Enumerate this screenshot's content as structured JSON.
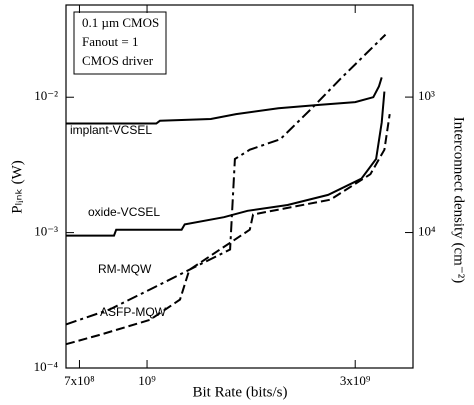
{
  "chart_data": {
    "type": "line",
    "xlabel": "Bit Rate (bits/s)",
    "ylabel": "Pₗᵢₙₖ (W)",
    "y2label": "Interconnect density (cm⁻²)",
    "annotations": [
      "0.1 µm CMOS",
      "Fanout = 1",
      "CMOS driver"
    ],
    "xscale": "log",
    "yscale": "log",
    "y2scale": "log",
    "xlim": [
      652000000,
      4070000000
    ],
    "ylim": [
      0.0001,
      0.048
    ],
    "y2lim": [
      100000,
      209
    ],
    "xticks": [
      {
        "value": 700000000,
        "label": "7x10⁸"
      },
      {
        "value": 1000000000,
        "label": "10⁹"
      },
      {
        "value": 3000000000,
        "label": "3x10⁹"
      }
    ],
    "yticks": [
      {
        "value": 0.0001,
        "label": "10⁻⁴"
      },
      {
        "value": 0.001,
        "label": "10⁻³"
      },
      {
        "value": 0.01,
        "label": "10⁻²"
      }
    ],
    "y2ticks": [
      {
        "value": 10000,
        "label": "10⁴"
      },
      {
        "value": 1000,
        "label": "10³"
      }
    ],
    "series": [
      {
        "name": "implant-VCSEL",
        "color": "#000000",
        "dash": "solid",
        "x": [
          652000000,
          1050000000,
          1070000000,
          1400000000,
          1600000000,
          2000000000,
          2500000000,
          3000000000,
          3300000000,
          3400000000,
          3450000000
        ],
        "values": [
          0.0064,
          0.0064,
          0.0067,
          0.0069,
          0.0075,
          0.0083,
          0.0088,
          0.0092,
          0.01,
          0.012,
          0.014
        ]
      },
      {
        "name": "oxide-VCSEL",
        "color": "#000000",
        "dash": "solid",
        "x": [
          652000000,
          840000000,
          850000000,
          1200000000,
          1220000000,
          1500000000,
          1700000000,
          2100000000,
          2600000000,
          3100000000,
          3350000000,
          3450000000,
          3500000000
        ],
        "values": [
          0.00095,
          0.00095,
          0.00105,
          0.00105,
          0.00115,
          0.0013,
          0.00145,
          0.0016,
          0.0019,
          0.0025,
          0.0035,
          0.0065,
          0.011
        ]
      },
      {
        "name": "RM-MQW",
        "color": "#000000",
        "dash": "dashdot",
        "x": [
          652000000,
          820000000,
          1016000000,
          1320000000,
          1550000000,
          1590000000,
          1720000000,
          2020000000,
          2370000000,
          2770000000,
          3520000000
        ],
        "values": [
          0.00021,
          0.00027,
          0.00038,
          0.00058,
          0.00075,
          0.0035,
          0.0041,
          0.0049,
          0.0081,
          0.0136,
          0.029
        ]
      },
      {
        "name": "ASFP-MQW",
        "color": "#000000",
        "dash": "dashed",
        "x": [
          652000000,
          780000000,
          1016000000,
          1190000000,
          1250000000,
          1720000000,
          1750000000,
          2630000000,
          3250000000,
          3500000000,
          3600000000
        ],
        "values": [
          0.00015,
          0.000176,
          0.000227,
          0.00032,
          0.00053,
          0.00105,
          0.00136,
          0.00175,
          0.0027,
          0.0041,
          0.0075
        ]
      }
    ]
  }
}
